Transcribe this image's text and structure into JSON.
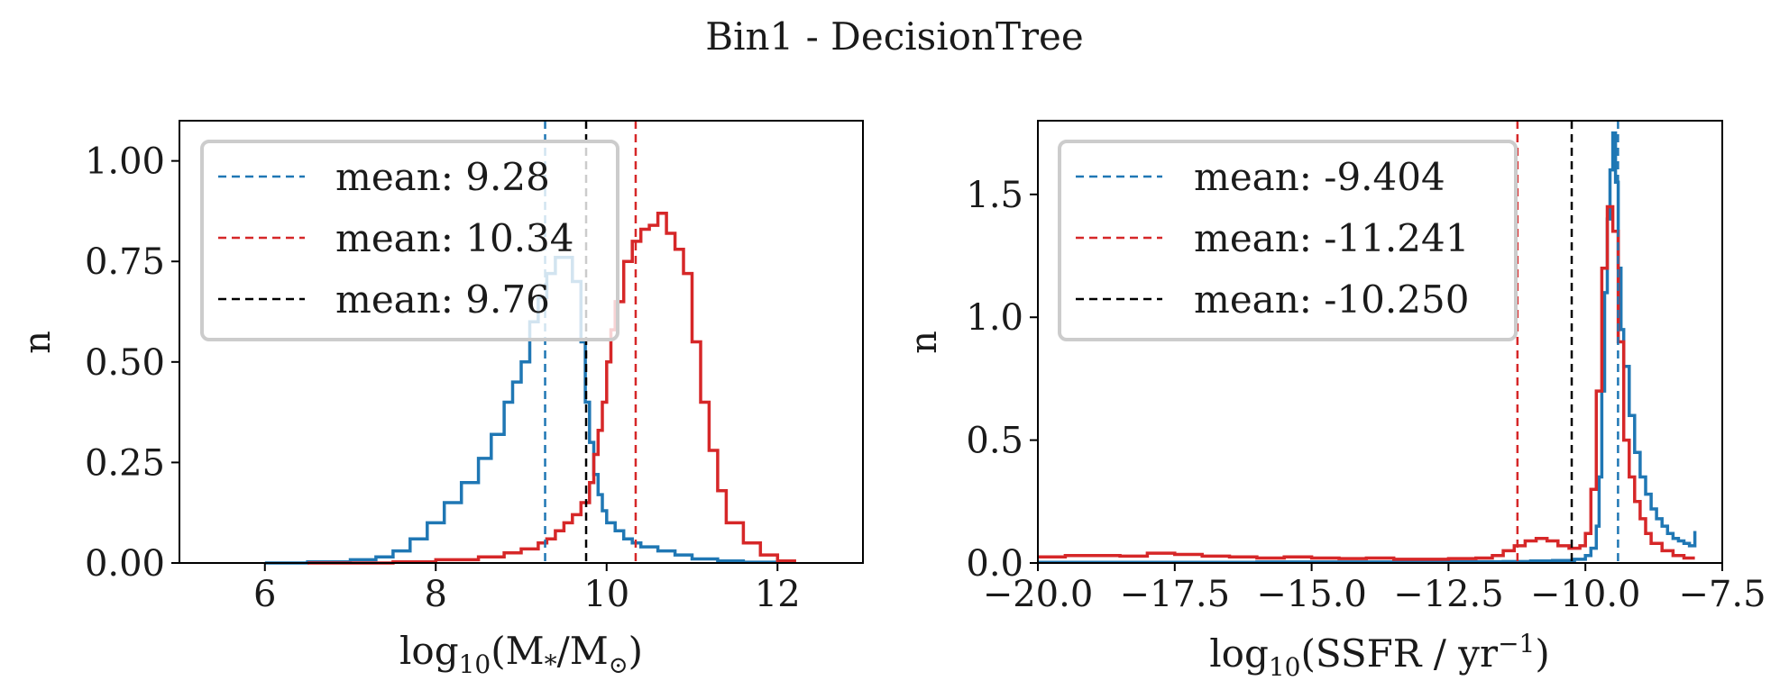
{
  "figure": {
    "title": "Bin1 - DecisionTree"
  },
  "colors": {
    "blue": "#1f77b4",
    "red": "#d62728",
    "black": "#000000"
  },
  "chart_data": [
    {
      "type": "line",
      "ylabel": "n",
      "xlabel_main": "log",
      "xlabel_sub": "10",
      "xlabel_rest": "(M",
      "xlabel_star": "*",
      "xlabel_mid": "/M",
      "xlabel_sun": "⊙",
      "xlabel_end": ")",
      "xlim": [
        5.0,
        13.0
      ],
      "ylim": [
        0,
        1.1
      ],
      "xticks": [
        6,
        8,
        10,
        12
      ],
      "xtick_labels": [
        "6",
        "8",
        "10",
        "12"
      ],
      "yticks": [
        0,
        0.25,
        0.5,
        0.75,
        1.0
      ],
      "ytick_labels": [
        "0.00",
        "0.25",
        "0.50",
        "0.75",
        "1.00"
      ],
      "legend_position": "top-left",
      "legend": [
        "mean: 9.28",
        "mean: 10.34",
        "mean: 9.76"
      ],
      "means": [
        9.28,
        10.34,
        9.76
      ],
      "mean_colors": [
        "blue",
        "red",
        "black"
      ],
      "series": [
        {
          "color": "blue",
          "x": [
            6.0,
            6.5,
            7.0,
            7.3,
            7.5,
            7.7,
            7.9,
            8.1,
            8.3,
            8.5,
            8.65,
            8.8,
            8.9,
            9.0,
            9.1,
            9.2,
            9.3,
            9.4,
            9.5,
            9.6,
            9.7,
            9.75,
            9.8,
            9.85,
            9.9,
            9.95,
            10.0,
            10.1,
            10.2,
            10.3,
            10.4,
            10.6,
            10.8,
            11.0,
            11.3,
            11.6,
            12.0
          ],
          "y": [
            0.0,
            0.003,
            0.008,
            0.015,
            0.03,
            0.06,
            0.1,
            0.15,
            0.2,
            0.26,
            0.32,
            0.4,
            0.45,
            0.5,
            0.6,
            0.66,
            0.72,
            0.76,
            0.76,
            0.7,
            0.55,
            0.4,
            0.3,
            0.22,
            0.17,
            0.13,
            0.1,
            0.08,
            0.06,
            0.05,
            0.04,
            0.03,
            0.02,
            0.01,
            0.005,
            0.002,
            0.0
          ]
        },
        {
          "color": "red",
          "x": [
            6.5,
            7.5,
            8.0,
            8.5,
            8.8,
            9.0,
            9.2,
            9.3,
            9.4,
            9.5,
            9.6,
            9.7,
            9.8,
            9.85,
            9.9,
            9.95,
            10.0,
            10.05,
            10.1,
            10.2,
            10.3,
            10.4,
            10.5,
            10.6,
            10.7,
            10.8,
            10.9,
            11.0,
            11.1,
            11.2,
            11.3,
            11.4,
            11.6,
            11.8,
            12.0,
            12.2
          ],
          "y": [
            0.0,
            0.003,
            0.008,
            0.015,
            0.025,
            0.035,
            0.05,
            0.06,
            0.08,
            0.1,
            0.12,
            0.15,
            0.2,
            0.27,
            0.33,
            0.4,
            0.5,
            0.58,
            0.65,
            0.75,
            0.8,
            0.83,
            0.84,
            0.87,
            0.82,
            0.78,
            0.72,
            0.55,
            0.4,
            0.28,
            0.18,
            0.1,
            0.05,
            0.02,
            0.005,
            0.0
          ]
        }
      ]
    },
    {
      "type": "line",
      "ylabel": "n",
      "xlabel_main": "log",
      "xlabel_sub": "10",
      "xlabel_rest": "(SSFR / yr",
      "xlabel_sup": "−1",
      "xlabel_end": ")",
      "xlim": [
        -20.0,
        -7.5
      ],
      "ylim": [
        0,
        1.8
      ],
      "xticks": [
        -20.0,
        -17.5,
        -15.0,
        -12.5,
        -10.0,
        -7.5
      ],
      "xtick_labels": [
        "−20.0",
        "−17.5",
        "−15.0",
        "−12.5",
        "−10.0",
        "−7.5"
      ],
      "yticks": [
        0,
        0.5,
        1.0,
        1.5
      ],
      "ytick_labels": [
        "0.0",
        "0.5",
        "1.0",
        "1.5"
      ],
      "legend_position": "top-left",
      "legend": [
        "mean: -9.404",
        "mean: -11.241",
        "mean: -10.250"
      ],
      "means": [
        -9.404,
        -11.241,
        -10.25
      ],
      "mean_colors": [
        "blue",
        "red",
        "black"
      ],
      "series": [
        {
          "color": "blue",
          "x": [
            -20.0,
            -18.0,
            -16.0,
            -14.0,
            -12.5,
            -11.5,
            -11.0,
            -10.6,
            -10.2,
            -10.0,
            -9.9,
            -9.8,
            -9.75,
            -9.7,
            -9.65,
            -9.6,
            -9.55,
            -9.5,
            -9.45,
            -9.4,
            -9.35,
            -9.3,
            -9.2,
            -9.1,
            -9.0,
            -8.9,
            -8.8,
            -8.7,
            -8.6,
            -8.5,
            -8.4,
            -8.3,
            -8.2,
            -8.1,
            -8.0
          ],
          "y": [
            0.003,
            0.003,
            0.004,
            0.004,
            0.005,
            0.006,
            0.008,
            0.01,
            0.015,
            0.03,
            0.06,
            0.15,
            0.35,
            0.7,
            1.1,
            1.4,
            1.6,
            1.75,
            1.55,
            1.2,
            0.95,
            0.8,
            0.6,
            0.45,
            0.35,
            0.28,
            0.22,
            0.18,
            0.15,
            0.12,
            0.1,
            0.09,
            0.08,
            0.07,
            0.13
          ]
        },
        {
          "color": "red",
          "x": [
            -20.0,
            -19.5,
            -19.0,
            -18.5,
            -18.0,
            -17.5,
            -17.0,
            -16.5,
            -16.0,
            -15.5,
            -15.0,
            -14.5,
            -14.0,
            -13.5,
            -13.0,
            -12.5,
            -12.0,
            -11.7,
            -11.5,
            -11.3,
            -11.1,
            -10.9,
            -10.7,
            -10.5,
            -10.3,
            -10.1,
            -10.0,
            -9.9,
            -9.8,
            -9.7,
            -9.6,
            -9.5,
            -9.4,
            -9.3,
            -9.2,
            -9.1,
            -9.0,
            -8.9,
            -8.8,
            -8.6,
            -8.4,
            -8.2,
            -8.0
          ],
          "y": [
            0.025,
            0.03,
            0.03,
            0.028,
            0.04,
            0.035,
            0.028,
            0.025,
            0.02,
            0.025,
            0.02,
            0.018,
            0.02,
            0.015,
            0.015,
            0.018,
            0.02,
            0.03,
            0.05,
            0.07,
            0.09,
            0.1,
            0.09,
            0.07,
            0.06,
            0.07,
            0.12,
            0.3,
            0.7,
            1.2,
            1.45,
            1.35,
            0.9,
            0.5,
            0.35,
            0.25,
            0.18,
            0.12,
            0.08,
            0.05,
            0.03,
            0.02,
            0.02
          ]
        }
      ]
    }
  ]
}
